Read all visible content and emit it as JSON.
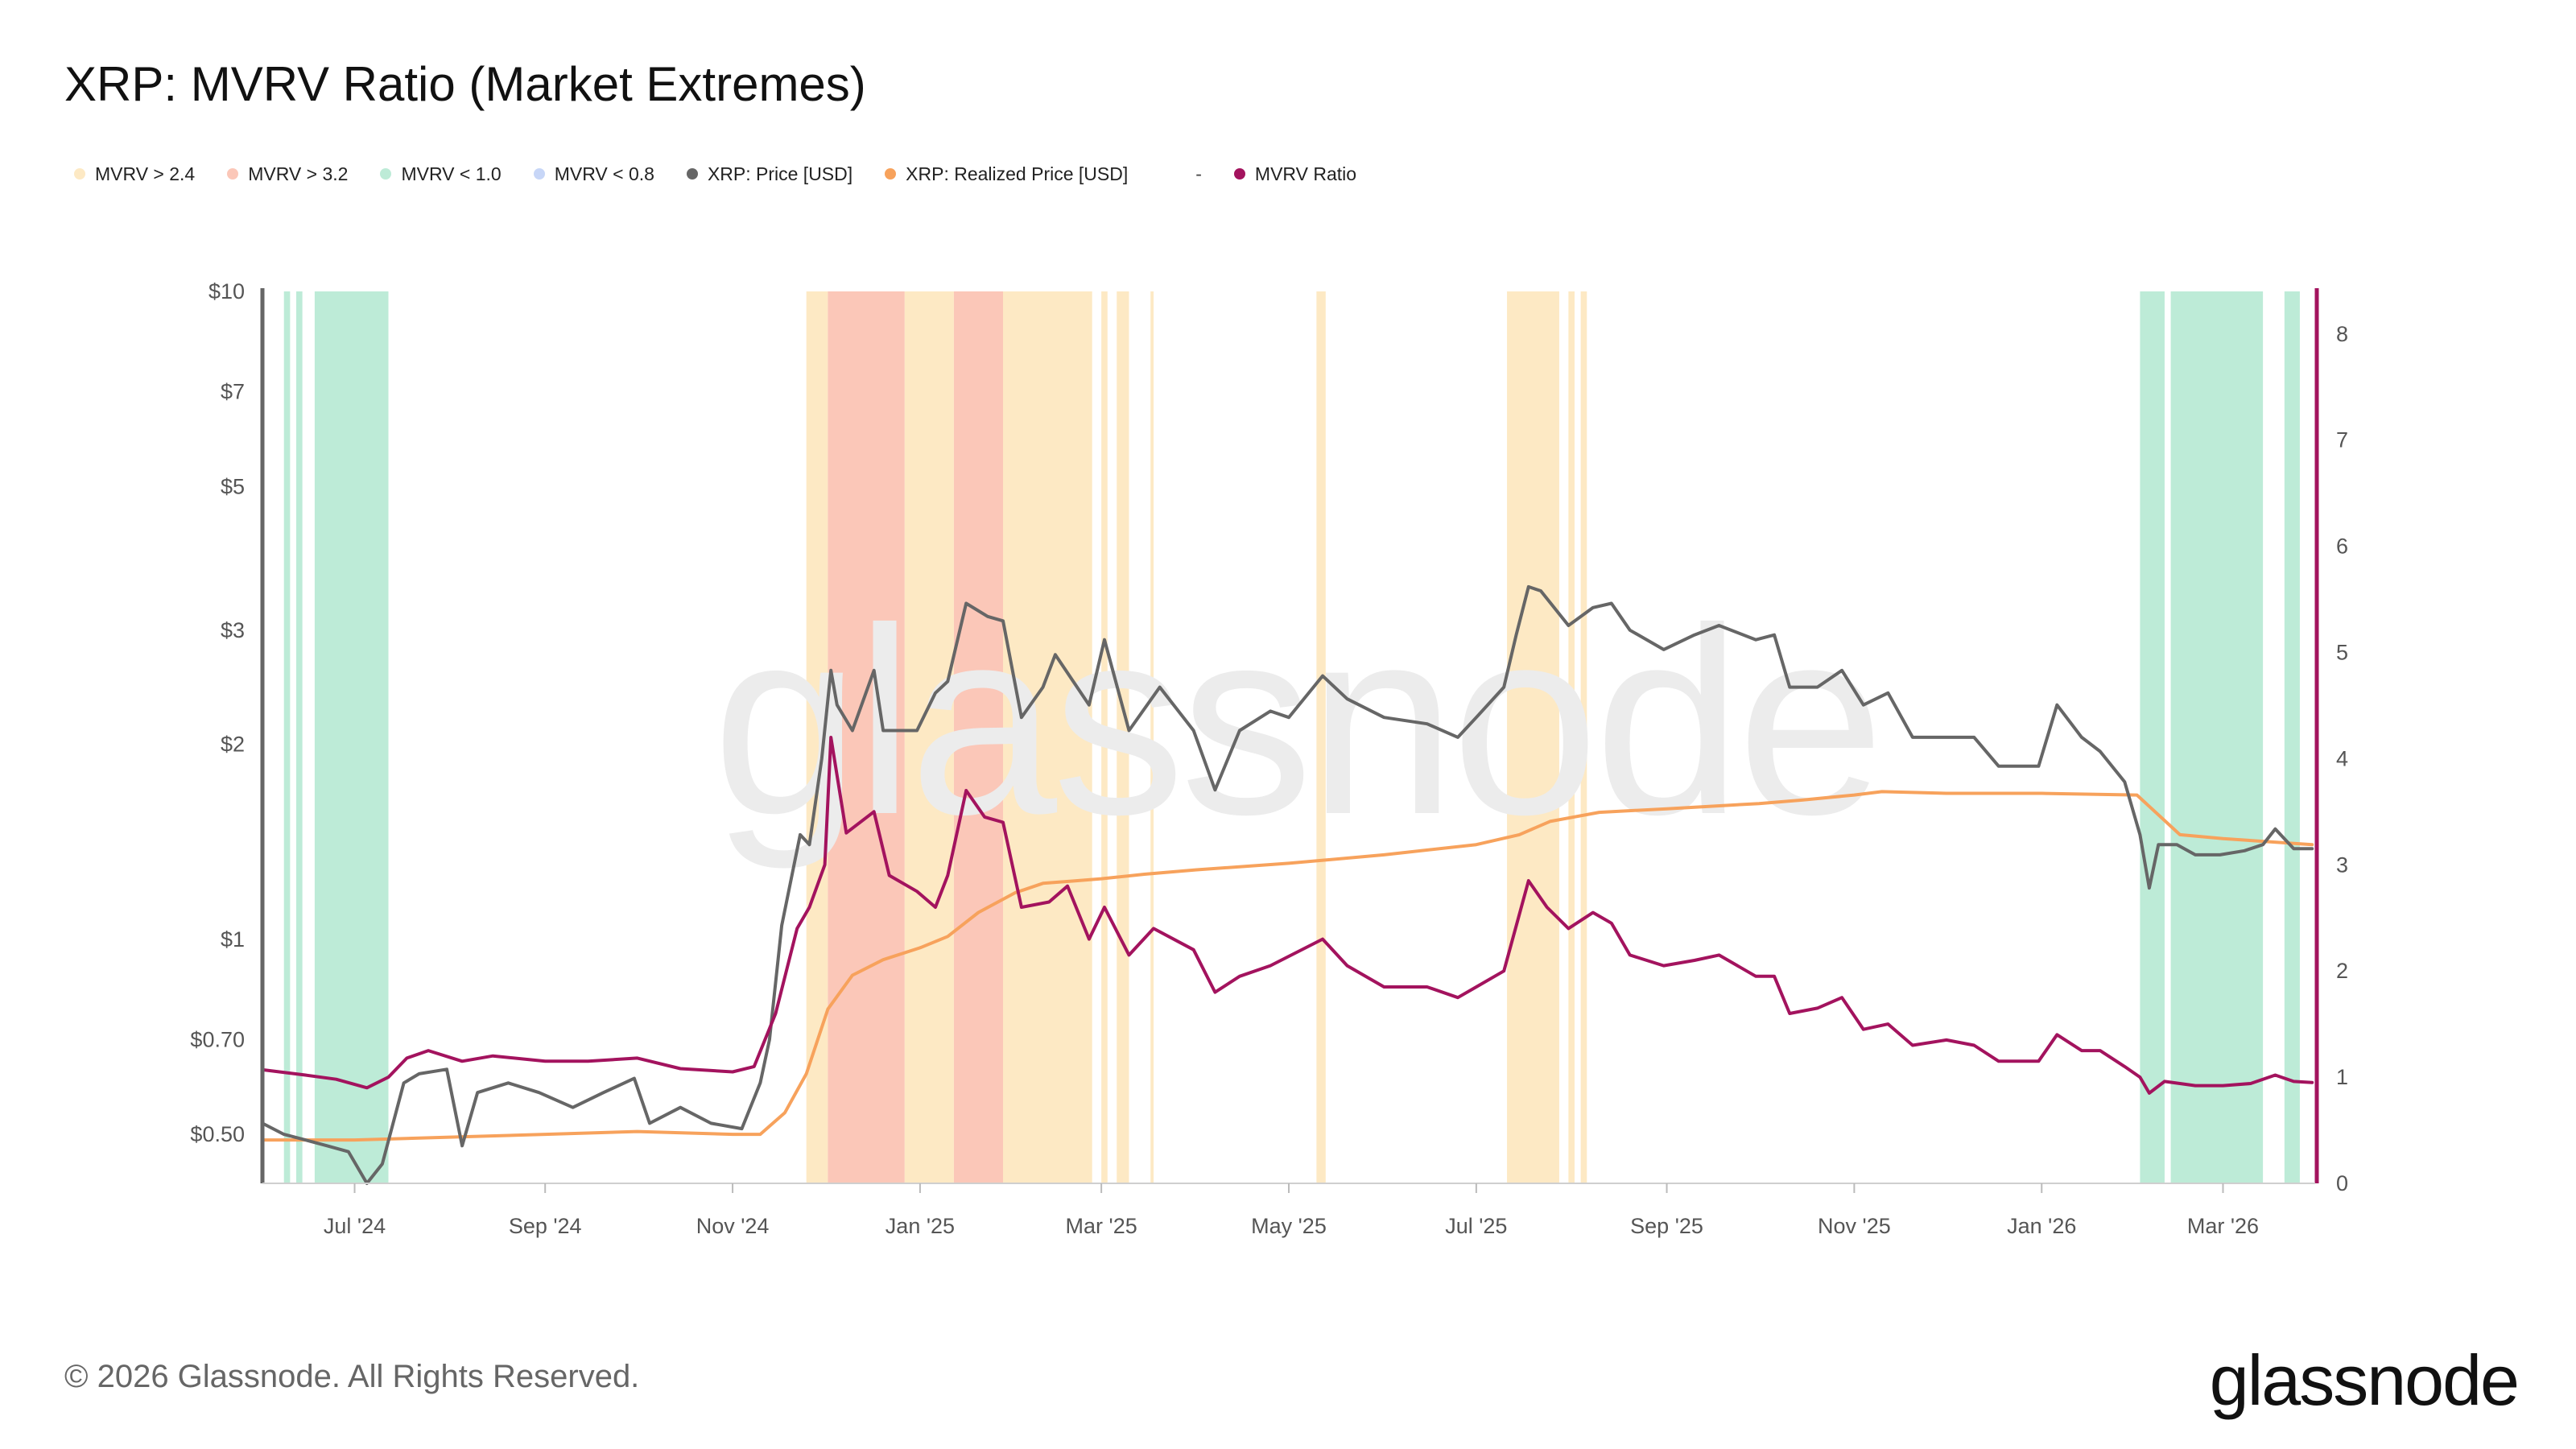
{
  "title": "XRP: MVRV Ratio (Market Extremes)",
  "legend": [
    {
      "label": "MVRV > 2.4",
      "color": "#fde9c4"
    },
    {
      "label": "MVRV > 3.2",
      "color": "#fbc7b8"
    },
    {
      "label": "MVRV < 1.0",
      "color": "#bdebd7"
    },
    {
      "label": "MVRV < 0.8",
      "color": "#c7d6f7"
    },
    {
      "label": "XRP: Price [USD]",
      "color": "#666666"
    },
    {
      "label": "XRP: Realized Price [USD]",
      "color": "#f7a25c"
    },
    {
      "label": "MVRV Ratio",
      "color": "#a3135e",
      "prefix": "-"
    }
  ],
  "footer": "© 2026 Glassnode. All Rights Reserved.",
  "brand": "glassnode",
  "watermark": "glassnode",
  "chart_data": {
    "type": "line",
    "title": "XRP: MVRV Ratio (Market Extremes)",
    "x_start": "2024-06-01",
    "x_end": "2026-03-31",
    "x_ticks": [
      {
        "label": "Jul '24",
        "date": "2024-07-01"
      },
      {
        "label": "Sep '24",
        "date": "2024-09-01"
      },
      {
        "label": "Nov '24",
        "date": "2024-11-01"
      },
      {
        "label": "Jan '25",
        "date": "2025-01-01"
      },
      {
        "label": "Mar '25",
        "date": "2025-03-01"
      },
      {
        "label": "May '25",
        "date": "2025-05-01"
      },
      {
        "label": "Jul '25",
        "date": "2025-07-01"
      },
      {
        "label": "Sep '25",
        "date": "2025-09-01"
      },
      {
        "label": "Nov '25",
        "date": "2025-11-01"
      },
      {
        "label": "Jan '26",
        "date": "2026-01-01"
      },
      {
        "label": "Mar '26",
        "date": "2026-03-01"
      }
    ],
    "y_left": {
      "scale": "log",
      "range": [
        0.42,
        10
      ],
      "ticks": [
        {
          "label": "$10",
          "value": 10
        },
        {
          "label": "$7",
          "value": 7
        },
        {
          "label": "$5",
          "value": 5
        },
        {
          "label": "$3",
          "value": 3
        },
        {
          "label": "$2",
          "value": 2
        },
        {
          "label": "$1",
          "value": 1
        },
        {
          "label": "$0.70",
          "value": 0.7
        },
        {
          "label": "$0.50",
          "value": 0.5
        }
      ]
    },
    "y_right": {
      "scale": "linear",
      "range": [
        0,
        8.4
      ],
      "ticks": [
        0,
        1,
        2,
        3,
        4,
        5,
        6,
        7,
        8
      ]
    },
    "bands": [
      {
        "category": "MVRV < 1.0",
        "start": "2024-06-08",
        "end": "2024-06-10"
      },
      {
        "category": "MVRV < 1.0",
        "start": "2024-06-12",
        "end": "2024-06-14"
      },
      {
        "category": "MVRV < 1.0",
        "start": "2024-06-18",
        "end": "2024-07-12"
      },
      {
        "category": "MVRV > 2.4",
        "start": "2024-11-25",
        "end": "2024-12-02"
      },
      {
        "category": "MVRV > 3.2",
        "start": "2024-12-02",
        "end": "2024-12-27"
      },
      {
        "category": "MVRV > 2.4",
        "start": "2024-12-27",
        "end": "2025-01-12"
      },
      {
        "category": "MVRV > 3.2",
        "start": "2025-01-12",
        "end": "2025-01-28"
      },
      {
        "category": "MVRV > 2.4",
        "start": "2025-01-28",
        "end": "2025-02-26"
      },
      {
        "category": "MVRV > 2.4",
        "start": "2025-03-01",
        "end": "2025-03-03"
      },
      {
        "category": "MVRV > 2.4",
        "start": "2025-03-06",
        "end": "2025-03-10"
      },
      {
        "category": "MVRV > 2.4",
        "start": "2025-03-17",
        "end": "2025-03-18"
      },
      {
        "category": "MVRV > 2.4",
        "start": "2025-05-10",
        "end": "2025-05-13"
      },
      {
        "category": "MVRV > 2.4",
        "start": "2025-07-11",
        "end": "2025-07-28"
      },
      {
        "category": "MVRV > 2.4",
        "start": "2025-07-31",
        "end": "2025-08-02"
      },
      {
        "category": "MVRV > 2.4",
        "start": "2025-08-04",
        "end": "2025-08-06"
      },
      {
        "category": "MVRV < 1.0",
        "start": "2026-02-02",
        "end": "2026-02-10"
      },
      {
        "category": "MVRV < 1.0",
        "start": "2026-02-12",
        "end": "2026-03-14"
      },
      {
        "category": "MVRV < 1.0",
        "start": "2026-03-21",
        "end": "2026-03-26"
      }
    ],
    "series": [
      {
        "name": "XRP: Price [USD]",
        "axis": "left",
        "color": "#666666",
        "points": [
          [
            "2024-06-01",
            0.52
          ],
          [
            "2024-06-08",
            0.5
          ],
          [
            "2024-06-15",
            0.49
          ],
          [
            "2024-06-22",
            0.48
          ],
          [
            "2024-06-29",
            0.47
          ],
          [
            "2024-07-05",
            0.42
          ],
          [
            "2024-07-10",
            0.45
          ],
          [
            "2024-07-17",
            0.6
          ],
          [
            "2024-07-22",
            0.62
          ],
          [
            "2024-07-31",
            0.63
          ],
          [
            "2024-08-05",
            0.48
          ],
          [
            "2024-08-10",
            0.58
          ],
          [
            "2024-08-20",
            0.6
          ],
          [
            "2024-08-30",
            0.58
          ],
          [
            "2024-09-10",
            0.55
          ],
          [
            "2024-09-20",
            0.58
          ],
          [
            "2024-09-30",
            0.61
          ],
          [
            "2024-10-05",
            0.52
          ],
          [
            "2024-10-15",
            0.55
          ],
          [
            "2024-10-25",
            0.52
          ],
          [
            "2024-11-04",
            0.51
          ],
          [
            "2024-11-10",
            0.6
          ],
          [
            "2024-11-13",
            0.7
          ],
          [
            "2024-11-17",
            1.05
          ],
          [
            "2024-11-23",
            1.45
          ],
          [
            "2024-11-26",
            1.4
          ],
          [
            "2024-11-30",
            1.9
          ],
          [
            "2024-12-03",
            2.6
          ],
          [
            "2024-12-05",
            2.3
          ],
          [
            "2024-12-10",
            2.1
          ],
          [
            "2024-12-17",
            2.6
          ],
          [
            "2024-12-20",
            2.1
          ],
          [
            "2024-12-31",
            2.1
          ],
          [
            "2025-01-06",
            2.4
          ],
          [
            "2025-01-10",
            2.5
          ],
          [
            "2025-01-16",
            3.3
          ],
          [
            "2025-01-23",
            3.15
          ],
          [
            "2025-01-28",
            3.1
          ],
          [
            "2025-02-03",
            2.2
          ],
          [
            "2025-02-10",
            2.45
          ],
          [
            "2025-02-14",
            2.75
          ],
          [
            "2025-02-25",
            2.3
          ],
          [
            "2025-03-02",
            2.9
          ],
          [
            "2025-03-10",
            2.1
          ],
          [
            "2025-03-20",
            2.45
          ],
          [
            "2025-03-31",
            2.1
          ],
          [
            "2025-04-07",
            1.7
          ],
          [
            "2025-04-15",
            2.1
          ],
          [
            "2025-04-25",
            2.25
          ],
          [
            "2025-05-01",
            2.2
          ],
          [
            "2025-05-12",
            2.55
          ],
          [
            "2025-05-20",
            2.35
          ],
          [
            "2025-06-01",
            2.2
          ],
          [
            "2025-06-15",
            2.15
          ],
          [
            "2025-06-25",
            2.05
          ],
          [
            "2025-07-01",
            2.2
          ],
          [
            "2025-07-10",
            2.45
          ],
          [
            "2025-07-14",
            2.95
          ],
          [
            "2025-07-18",
            3.5
          ],
          [
            "2025-07-22",
            3.45
          ],
          [
            "2025-07-31",
            3.05
          ],
          [
            "2025-08-08",
            3.25
          ],
          [
            "2025-08-14",
            3.3
          ],
          [
            "2025-08-20",
            3.0
          ],
          [
            "2025-08-31",
            2.8
          ],
          [
            "2025-09-10",
            2.95
          ],
          [
            "2025-09-18",
            3.05
          ],
          [
            "2025-09-30",
            2.9
          ],
          [
            "2025-10-06",
            2.95
          ],
          [
            "2025-10-11",
            2.45
          ],
          [
            "2025-10-20",
            2.45
          ],
          [
            "2025-10-28",
            2.6
          ],
          [
            "2025-11-04",
            2.3
          ],
          [
            "2025-11-12",
            2.4
          ],
          [
            "2025-11-20",
            2.05
          ],
          [
            "2025-12-01",
            2.05
          ],
          [
            "2025-12-10",
            2.05
          ],
          [
            "2025-12-18",
            1.85
          ],
          [
            "2025-12-31",
            1.85
          ],
          [
            "2026-01-06",
            2.3
          ],
          [
            "2026-01-14",
            2.05
          ],
          [
            "2026-01-20",
            1.95
          ],
          [
            "2026-01-28",
            1.75
          ],
          [
            "2026-02-02",
            1.45
          ],
          [
            "2026-02-05",
            1.2
          ],
          [
            "2026-02-08",
            1.4
          ],
          [
            "2026-02-14",
            1.4
          ],
          [
            "2026-02-20",
            1.35
          ],
          [
            "2026-02-28",
            1.35
          ],
          [
            "2026-03-08",
            1.37
          ],
          [
            "2026-03-14",
            1.4
          ],
          [
            "2026-03-18",
            1.48
          ],
          [
            "2026-03-24",
            1.38
          ],
          [
            "2026-03-30",
            1.38
          ]
        ]
      },
      {
        "name": "XRP: Realized Price [USD]",
        "axis": "left",
        "color": "#f7a25c",
        "points": [
          [
            "2024-06-01",
            0.49
          ],
          [
            "2024-07-01",
            0.49
          ],
          [
            "2024-08-01",
            0.495
          ],
          [
            "2024-09-01",
            0.5
          ],
          [
            "2024-10-01",
            0.505
          ],
          [
            "2024-11-01",
            0.5
          ],
          [
            "2024-11-10",
            0.5
          ],
          [
            "2024-11-18",
            0.54
          ],
          [
            "2024-11-25",
            0.62
          ],
          [
            "2024-12-02",
            0.78
          ],
          [
            "2024-12-10",
            0.88
          ],
          [
            "2024-12-20",
            0.93
          ],
          [
            "2025-01-01",
            0.97
          ],
          [
            "2025-01-10",
            1.01
          ],
          [
            "2025-01-20",
            1.1
          ],
          [
            "2025-02-01",
            1.18
          ],
          [
            "2025-02-10",
            1.22
          ],
          [
            "2025-02-20",
            1.23
          ],
          [
            "2025-03-01",
            1.24
          ],
          [
            "2025-03-15",
            1.26
          ],
          [
            "2025-04-01",
            1.28
          ],
          [
            "2025-05-01",
            1.31
          ],
          [
            "2025-06-01",
            1.35
          ],
          [
            "2025-07-01",
            1.4
          ],
          [
            "2025-07-15",
            1.45
          ],
          [
            "2025-07-25",
            1.52
          ],
          [
            "2025-08-10",
            1.57
          ],
          [
            "2025-09-01",
            1.59
          ],
          [
            "2025-10-01",
            1.62
          ],
          [
            "2025-10-15",
            1.64
          ],
          [
            "2025-11-01",
            1.67
          ],
          [
            "2025-11-10",
            1.69
          ],
          [
            "2025-12-01",
            1.68
          ],
          [
            "2026-01-01",
            1.68
          ],
          [
            "2026-02-01",
            1.67
          ],
          [
            "2026-02-15",
            1.45
          ],
          [
            "2026-03-01",
            1.43
          ],
          [
            "2026-03-30",
            1.4
          ]
        ]
      },
      {
        "name": "MVRV Ratio",
        "axis": "right",
        "color": "#a3135e",
        "points": [
          [
            "2024-06-01",
            1.07
          ],
          [
            "2024-06-15",
            1.02
          ],
          [
            "2024-06-25",
            0.98
          ],
          [
            "2024-07-05",
            0.9
          ],
          [
            "2024-07-12",
            1.0
          ],
          [
            "2024-07-18",
            1.18
          ],
          [
            "2024-07-25",
            1.25
          ],
          [
            "2024-08-05",
            1.15
          ],
          [
            "2024-08-15",
            1.2
          ],
          [
            "2024-09-01",
            1.15
          ],
          [
            "2024-09-15",
            1.15
          ],
          [
            "2024-10-01",
            1.18
          ],
          [
            "2024-10-15",
            1.08
          ],
          [
            "2024-11-01",
            1.05
          ],
          [
            "2024-11-08",
            1.1
          ],
          [
            "2024-11-15",
            1.6
          ],
          [
            "2024-11-22",
            2.4
          ],
          [
            "2024-11-26",
            2.6
          ],
          [
            "2024-12-01",
            3.0
          ],
          [
            "2024-12-03",
            4.2
          ],
          [
            "2024-12-08",
            3.3
          ],
          [
            "2024-12-17",
            3.5
          ],
          [
            "2024-12-22",
            2.9
          ],
          [
            "2024-12-31",
            2.75
          ],
          [
            "2025-01-06",
            2.6
          ],
          [
            "2025-01-10",
            2.9
          ],
          [
            "2025-01-16",
            3.7
          ],
          [
            "2025-01-22",
            3.45
          ],
          [
            "2025-01-28",
            3.4
          ],
          [
            "2025-02-03",
            2.6
          ],
          [
            "2025-02-12",
            2.65
          ],
          [
            "2025-02-18",
            2.8
          ],
          [
            "2025-02-25",
            2.3
          ],
          [
            "2025-03-02",
            2.6
          ],
          [
            "2025-03-10",
            2.15
          ],
          [
            "2025-03-18",
            2.4
          ],
          [
            "2025-03-31",
            2.2
          ],
          [
            "2025-04-07",
            1.8
          ],
          [
            "2025-04-15",
            1.95
          ],
          [
            "2025-04-25",
            2.05
          ],
          [
            "2025-05-12",
            2.3
          ],
          [
            "2025-05-20",
            2.05
          ],
          [
            "2025-06-01",
            1.85
          ],
          [
            "2025-06-15",
            1.85
          ],
          [
            "2025-06-25",
            1.75
          ],
          [
            "2025-07-01",
            1.85
          ],
          [
            "2025-07-10",
            2.0
          ],
          [
            "2025-07-18",
            2.85
          ],
          [
            "2025-07-24",
            2.6
          ],
          [
            "2025-07-31",
            2.4
          ],
          [
            "2025-08-08",
            2.55
          ],
          [
            "2025-08-14",
            2.45
          ],
          [
            "2025-08-20",
            2.15
          ],
          [
            "2025-08-31",
            2.05
          ],
          [
            "2025-09-10",
            2.1
          ],
          [
            "2025-09-18",
            2.15
          ],
          [
            "2025-09-30",
            1.95
          ],
          [
            "2025-10-06",
            1.95
          ],
          [
            "2025-10-11",
            1.6
          ],
          [
            "2025-10-20",
            1.65
          ],
          [
            "2025-10-28",
            1.75
          ],
          [
            "2025-11-04",
            1.45
          ],
          [
            "2025-11-12",
            1.5
          ],
          [
            "2025-11-20",
            1.3
          ],
          [
            "2025-12-01",
            1.35
          ],
          [
            "2025-12-10",
            1.3
          ],
          [
            "2025-12-18",
            1.15
          ],
          [
            "2025-12-31",
            1.15
          ],
          [
            "2026-01-06",
            1.4
          ],
          [
            "2026-01-14",
            1.25
          ],
          [
            "2026-01-20",
            1.25
          ],
          [
            "2026-01-28",
            1.1
          ],
          [
            "2026-02-02",
            1.0
          ],
          [
            "2026-02-05",
            0.85
          ],
          [
            "2026-02-10",
            0.96
          ],
          [
            "2026-02-20",
            0.92
          ],
          [
            "2026-03-01",
            0.92
          ],
          [
            "2026-03-10",
            0.94
          ],
          [
            "2026-03-18",
            1.02
          ],
          [
            "2026-03-24",
            0.96
          ],
          [
            "2026-03-30",
            0.95
          ]
        ]
      }
    ]
  }
}
